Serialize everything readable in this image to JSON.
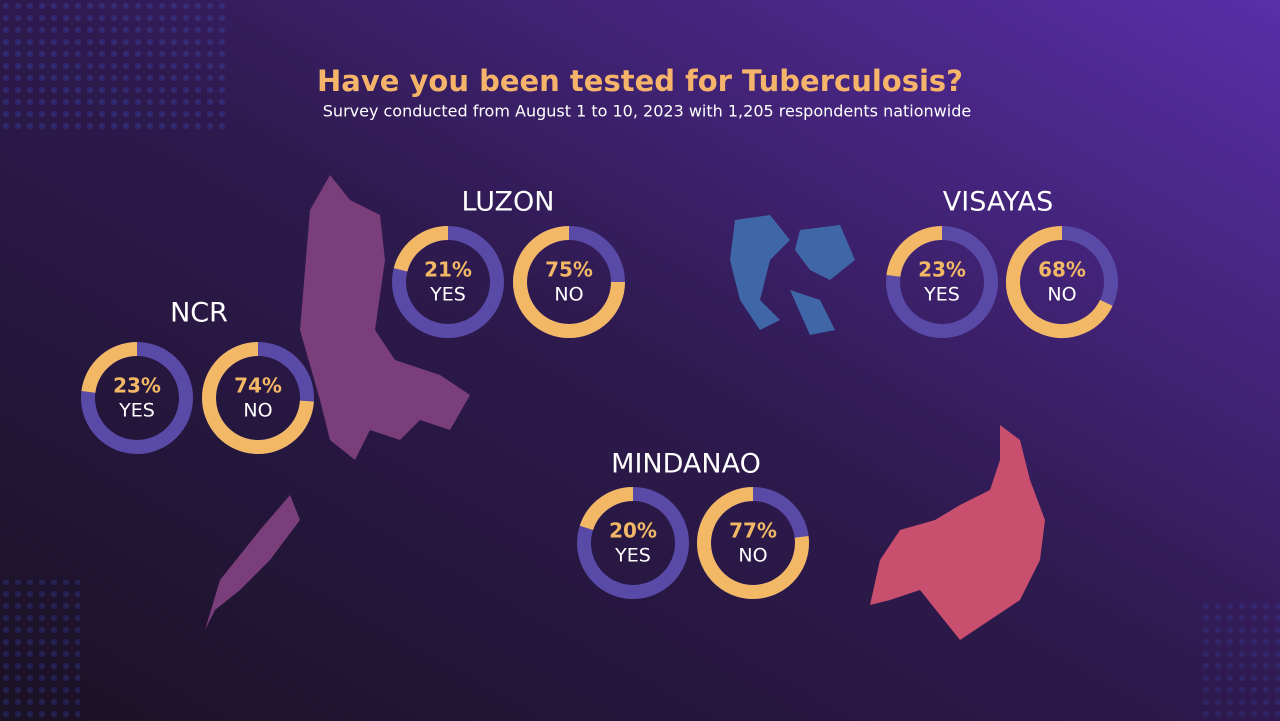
{
  "header": {
    "title": "Have you been tested for Tuberculosis?",
    "subtitle": "Survey conducted from August 1 to 10, 2023 with 1,205 respondents nationwide"
  },
  "chart_data": [
    {
      "type": "donut",
      "title": "LUZON",
      "categories": [
        "YES",
        "NO"
      ],
      "values": [
        21,
        75
      ],
      "value_labels": [
        "21%",
        "75%"
      ],
      "color": "#f2b866",
      "track_color": "#5a4aa8"
    },
    {
      "type": "donut",
      "title": "VISAYAS",
      "categories": [
        "YES",
        "NO"
      ],
      "values": [
        23,
        68
      ],
      "value_labels": [
        "23%",
        "68%"
      ],
      "color": "#f2b866",
      "track_color": "#5a4aa8"
    },
    {
      "type": "donut",
      "title": "NCR",
      "categories": [
        "YES",
        "NO"
      ],
      "values": [
        23,
        74
      ],
      "value_labels": [
        "23%",
        "74%"
      ],
      "color": "#f2b866",
      "track_color": "#5a4aa8"
    },
    {
      "type": "donut",
      "title": "MINDANAO",
      "categories": [
        "YES",
        "NO"
      ],
      "values": [
        20,
        77
      ],
      "value_labels": [
        "20%",
        "77%"
      ],
      "color": "#f2b866",
      "track_color": "#5a4aa8"
    }
  ]
}
